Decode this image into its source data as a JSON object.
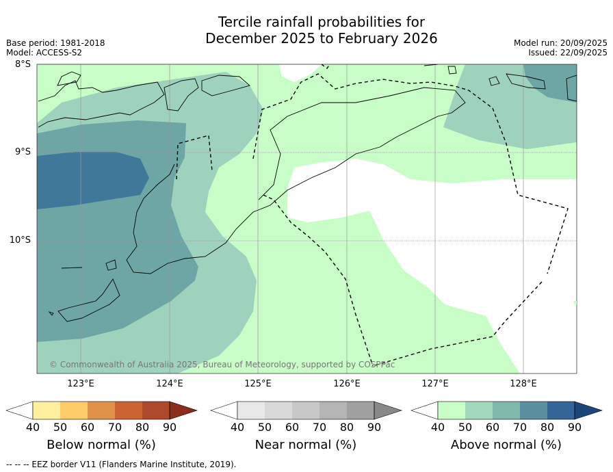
{
  "title_line1": "Tercile rainfall probabilities for",
  "title_line2": "December 2025 to February 2026",
  "base_period": "Base period: 1981-2018",
  "model": "Model: ACCESS-S2",
  "model_run": "Model run: 20/09/2025",
  "issued": "Issued: 22/09/2025",
  "lat_labels": [
    "8°S",
    "9°S",
    "10°S"
  ],
  "lon_labels": [
    "123°E",
    "124°E",
    "125°E",
    "126°E",
    "127°E",
    "128°E"
  ],
  "copyright": "© Commonwealth of Australia 2025, Bureau of Meteorology, supported by COSPPac",
  "footer": "--  --  -- EEZ border V11 (Flanders Marine Institute, 2019).",
  "colorbars": [
    {
      "label": "Below normal (%)",
      "ticks": [
        "40",
        "50",
        "60",
        "70",
        "80",
        "90"
      ],
      "colors": [
        "#ffffff",
        "#fff0a0",
        "#fdcb68",
        "#e0924a",
        "#cb6432",
        "#ad482a",
        "#8b2d1c"
      ]
    },
    {
      "label": "Near normal (%)",
      "ticks": [
        "40",
        "50",
        "60",
        "70",
        "80",
        "90"
      ],
      "colors": [
        "#ffffff",
        "#e8e8e8",
        "#d8d8d8",
        "#c8c8c8",
        "#b4b4b4",
        "#a0a0a0",
        "#888888"
      ]
    },
    {
      "label": "Above normal (%)",
      "ticks": [
        "40",
        "50",
        "60",
        "70",
        "80",
        "90"
      ],
      "colors": [
        "#ffffff",
        "#c8fdc8",
        "#a4d8bc",
        "#80b8ac",
        "#5b8fa0",
        "#356596",
        "#1c4678"
      ]
    }
  ],
  "map_colors": {
    "above_40": "#c8fdc8",
    "above_50": "#9ed2bc",
    "above_60": "#6ea6a6",
    "above_70": "#3f7898"
  }
}
